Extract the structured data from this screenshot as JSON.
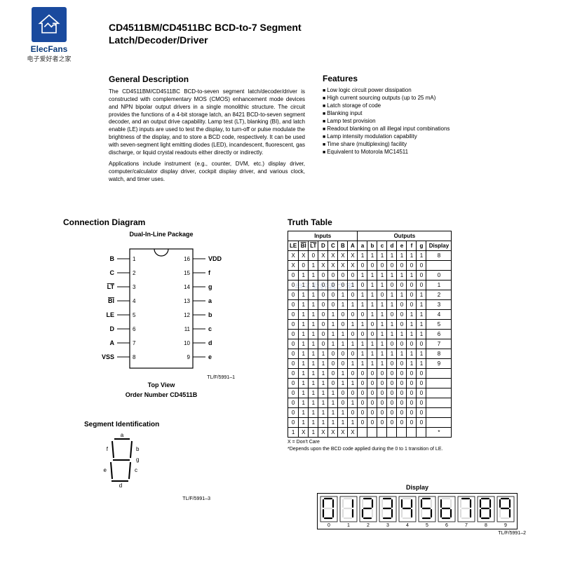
{
  "logo": {
    "brand_en": "ElecFans",
    "brand_cn": "电子爱好者之家",
    "bg_color": "#1a4a9e",
    "stroke_color": "#ffffff"
  },
  "title_line1": "CD4511BM/CD4511BC BCD-to-7 Segment",
  "title_line2": "Latch/Decoder/Driver",
  "desc": {
    "heading": "General Description",
    "p1": "The CD4511BM/CD4511BC BCD-to-seven segment latch/decoder/driver is constructed with complementary MOS (CMOS) enhancement mode devices and NPN bipolar output drivers in a single monolithic structure. The circuit provides the functions of a 4-bit storage latch, an 8421 BCD-to-seven segment decoder, and an output drive capability. Lamp test (LT), blanking (BI), and latch enable (LE) inputs are used to test the display, to turn-off or pulse modulate the brightness of the display, and to store a BCD code, respectively. It can be used with seven-segment light emitting diodes (LED), incandescent, fluorescent, gas discharge, or liquid crystal readouts either directly or indirectly.",
    "p2": "Applications include instrument (e.g., counter, DVM, etc.) display driver, computer/calculator display driver, cockpit display driver, and various clock, watch, and timer uses."
  },
  "features": {
    "heading": "Features",
    "items": [
      "Low logic circuit power dissipation",
      "High current sourcing outputs (up to 25 mA)",
      "Latch storage of code",
      "Blanking input",
      "Lamp test provision",
      "Readout blanking on all illegal input combinations",
      "Lamp intensity modulation capability",
      "Time share (multiplexing) facility",
      "Equivalent to Motorola MC14511"
    ]
  },
  "conn": {
    "heading": "Connection Diagram",
    "pkg": "Dual-In-Line Package",
    "left_pins": [
      {
        "n": "1",
        "l": "B"
      },
      {
        "n": "2",
        "l": "C"
      },
      {
        "n": "3",
        "l": "LT",
        "ov": true
      },
      {
        "n": "4",
        "l": "BI",
        "ov": true
      },
      {
        "n": "5",
        "l": "LE"
      },
      {
        "n": "6",
        "l": "D"
      },
      {
        "n": "7",
        "l": "A"
      },
      {
        "n": "8",
        "l": "VSS"
      }
    ],
    "right_pins": [
      {
        "n": "16",
        "l": "VDD"
      },
      {
        "n": "15",
        "l": "f"
      },
      {
        "n": "14",
        "l": "g"
      },
      {
        "n": "13",
        "l": "a"
      },
      {
        "n": "12",
        "l": "b"
      },
      {
        "n": "11",
        "l": "c"
      },
      {
        "n": "10",
        "l": "d"
      },
      {
        "n": "9",
        "l": "e"
      }
    ],
    "tlf": "TL/F/5991–1",
    "topview": "Top View",
    "ordernum": "Order Number CD4511B"
  },
  "segid": {
    "heading": "Segment Identification",
    "labels": [
      "a",
      "b",
      "c",
      "d",
      "e",
      "f",
      "g"
    ],
    "tlf": "TL/F/5991–3"
  },
  "truth": {
    "heading": "Truth Table",
    "grp_inputs": "Inputs",
    "grp_outputs": "Outputs",
    "cols": [
      "LE",
      "BI",
      "LT",
      "D",
      "C",
      "B",
      "A",
      "a",
      "b",
      "c",
      "d",
      "e",
      "f",
      "g",
      "Display"
    ],
    "ov_cols": [
      false,
      true,
      true,
      false,
      false,
      false,
      false,
      false,
      false,
      false,
      false,
      false,
      false,
      false,
      false
    ],
    "rows": [
      [
        "X",
        "X",
        "0",
        "X",
        "X",
        "X",
        "X",
        "1",
        "1",
        "1",
        "1",
        "1",
        "1",
        "1",
        "8"
      ],
      [
        "X",
        "0",
        "1",
        "X",
        "X",
        "X",
        "X",
        "0",
        "0",
        "0",
        "0",
        "0",
        "0",
        "0",
        ""
      ],
      [
        "0",
        "1",
        "1",
        "0",
        "0",
        "0",
        "0",
        "1",
        "1",
        "1",
        "1",
        "1",
        "1",
        "0",
        "0"
      ],
      [
        "0",
        "1",
        "1",
        "0",
        "0",
        "0",
        "1",
        "0",
        "1",
        "1",
        "0",
        "0",
        "0",
        "0",
        "1"
      ],
      [
        "0",
        "1",
        "1",
        "0",
        "0",
        "1",
        "0",
        "1",
        "1",
        "0",
        "1",
        "1",
        "0",
        "1",
        "2"
      ],
      [
        "0",
        "1",
        "1",
        "0",
        "0",
        "1",
        "1",
        "1",
        "1",
        "1",
        "1",
        "0",
        "0",
        "1",
        "3"
      ],
      [
        "0",
        "1",
        "1",
        "0",
        "1",
        "0",
        "0",
        "0",
        "1",
        "1",
        "0",
        "0",
        "1",
        "1",
        "4"
      ],
      [
        "0",
        "1",
        "1",
        "0",
        "1",
        "0",
        "1",
        "1",
        "0",
        "1",
        "1",
        "0",
        "1",
        "1",
        "5"
      ],
      [
        "0",
        "1",
        "1",
        "0",
        "1",
        "1",
        "0",
        "0",
        "0",
        "1",
        "1",
        "1",
        "1",
        "1",
        "6"
      ],
      [
        "0",
        "1",
        "1",
        "0",
        "1",
        "1",
        "1",
        "1",
        "1",
        "1",
        "0",
        "0",
        "0",
        "0",
        "7"
      ],
      [
        "0",
        "1",
        "1",
        "1",
        "0",
        "0",
        "0",
        "1",
        "1",
        "1",
        "1",
        "1",
        "1",
        "1",
        "8"
      ],
      [
        "0",
        "1",
        "1",
        "1",
        "0",
        "0",
        "1",
        "1",
        "1",
        "1",
        "0",
        "0",
        "1",
        "1",
        "9"
      ],
      [
        "0",
        "1",
        "1",
        "1",
        "0",
        "1",
        "0",
        "0",
        "0",
        "0",
        "0",
        "0",
        "0",
        "0",
        ""
      ],
      [
        "0",
        "1",
        "1",
        "1",
        "0",
        "1",
        "1",
        "0",
        "0",
        "0",
        "0",
        "0",
        "0",
        "0",
        ""
      ],
      [
        "0",
        "1",
        "1",
        "1",
        "1",
        "0",
        "0",
        "0",
        "0",
        "0",
        "0",
        "0",
        "0",
        "0",
        ""
      ],
      [
        "0",
        "1",
        "1",
        "1",
        "1",
        "0",
        "1",
        "0",
        "0",
        "0",
        "0",
        "0",
        "0",
        "0",
        ""
      ],
      [
        "0",
        "1",
        "1",
        "1",
        "1",
        "1",
        "0",
        "0",
        "0",
        "0",
        "0",
        "0",
        "0",
        "0",
        ""
      ],
      [
        "0",
        "1",
        "1",
        "1",
        "1",
        "1",
        "1",
        "0",
        "0",
        "0",
        "0",
        "0",
        "0",
        "0",
        ""
      ],
      [
        "1",
        "X",
        "1",
        "X",
        "X",
        "X",
        "X",
        "",
        "",
        "",
        "",
        "",
        "",
        "",
        "*"
      ]
    ],
    "note1": "X = Don't Care",
    "note2": "*Depends upon the BCD code applied during the 0 to 1 transition of LE."
  },
  "display": {
    "heading": "Display",
    "tlf": "TL/F/5991–2",
    "digits": [
      {
        "n": "0",
        "seg": [
          1,
          1,
          1,
          1,
          1,
          1,
          0
        ]
      },
      {
        "n": "1",
        "seg": [
          0,
          1,
          1,
          0,
          0,
          0,
          0
        ]
      },
      {
        "n": "2",
        "seg": [
          1,
          1,
          0,
          1,
          1,
          0,
          1
        ]
      },
      {
        "n": "3",
        "seg": [
          1,
          1,
          1,
          1,
          0,
          0,
          1
        ]
      },
      {
        "n": "4",
        "seg": [
          0,
          1,
          1,
          0,
          0,
          1,
          1
        ]
      },
      {
        "n": "5",
        "seg": [
          1,
          0,
          1,
          1,
          0,
          1,
          1
        ]
      },
      {
        "n": "6",
        "seg": [
          0,
          0,
          1,
          1,
          1,
          1,
          1
        ]
      },
      {
        "n": "7",
        "seg": [
          1,
          1,
          1,
          0,
          0,
          0,
          0
        ]
      },
      {
        "n": "8",
        "seg": [
          1,
          1,
          1,
          1,
          1,
          1,
          1
        ]
      },
      {
        "n": "9",
        "seg": [
          1,
          1,
          1,
          0,
          0,
          1,
          1
        ]
      }
    ]
  },
  "watermark": "电子爱好者之家"
}
